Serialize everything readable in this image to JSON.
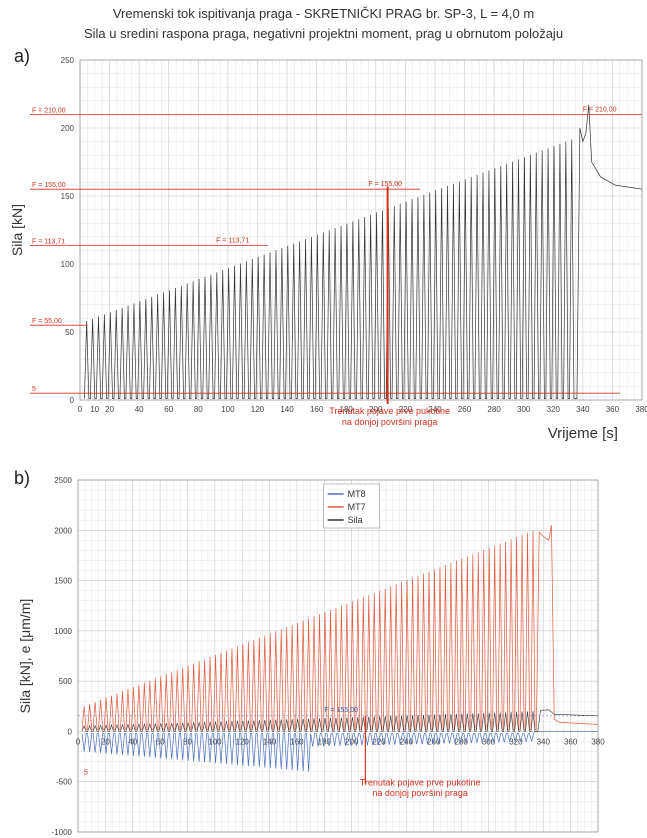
{
  "header": {
    "title": "Vremenski tok ispitivanja praga - SKRETNIČKI PRAG br. SP-3, L = 4,0 m",
    "subtitle": "Sila u sredini raspona praga, negativni projektni moment, prag u obrnutom položaju"
  },
  "colors": {
    "force": "#333333",
    "mt7": "#e05a3c",
    "mt8": "#4a72c0",
    "annotation": "#d3321f",
    "grid": "#bdbdbd"
  },
  "chart_data": [
    {
      "panel_label": "a)",
      "type": "line",
      "xlabel": "Vrijeme [s]",
      "ylabel": "Sila [kN]",
      "xlim": [
        0,
        380
      ],
      "ylim": [
        0,
        250
      ],
      "x_ticks": [
        "0",
        "10",
        "20",
        "40",
        "60",
        "80",
        "100",
        "120",
        "140",
        "160",
        "180",
        "200",
        "220",
        "240",
        "260",
        "280",
        "300",
        "320",
        "340",
        "360",
        "380"
      ],
      "y_ticks": [
        "0",
        "50",
        "100",
        "150",
        "200",
        "250"
      ],
      "grid": true,
      "series": [
        {
          "role": "force",
          "cycles": {
            "t_start": 3,
            "t_end": 332,
            "peak_start": 58,
            "peak_end": 192
          },
          "final_peak": {
            "t": 344,
            "value": 217
          },
          "tail": {
            "t_end": 380,
            "value": 155
          }
        }
      ],
      "reference_lines": [
        {
          "value": 210,
          "left_label": "F = 210,00",
          "right_label": "F = 210,00",
          "label_t": 340
        },
        {
          "value": 155,
          "left_label": "F = 155,00",
          "mid_label": "F = 155,00",
          "label_t": 195
        },
        {
          "value": 113.71,
          "left_label": "F = 113,71",
          "mid_label": "F = 113,71",
          "label_t": 92
        },
        {
          "value": 55,
          "left_label": "F = 55,00"
        },
        {
          "value": 5,
          "left_label": "5"
        }
      ],
      "crack_marker": {
        "t": 208,
        "label_line1": "Trenutak pojave prve pukotine",
        "label_line2": "na donjoj površini praga"
      }
    },
    {
      "panel_label": "b)",
      "type": "line",
      "xlabel": "",
      "ylabel": "Sila [kN], e [μm/m]",
      "xlim": [
        0,
        380
      ],
      "ylim": [
        -1000,
        2500
      ],
      "x_ticks": [
        "0",
        "20",
        "40",
        "60",
        "80",
        "100",
        "120",
        "140",
        "160",
        "180",
        "200",
        "220",
        "240",
        "260",
        "280",
        "300",
        "320",
        "340",
        "360",
        "380"
      ],
      "y_ticks": [
        "-1000",
        "-500",
        "0",
        "500",
        "1000",
        "1500",
        "2000",
        "2500"
      ],
      "grid": true,
      "legend": {
        "placement": "top-center",
        "entries": [
          "MT8",
          "MT7",
          "Sila"
        ]
      },
      "series": [
        {
          "name": "MT8",
          "role": "mt8",
          "trough_start": -200,
          "trough_end": -400
        },
        {
          "name": "MT7",
          "role": "mt7",
          "peak_start": 250,
          "peak_end": 2000,
          "final_peak": 2050,
          "tail_value": 70
        },
        {
          "name": "Sila",
          "role": "force",
          "peak_start": 55,
          "peak_end": 200,
          "tail_value": 155
        }
      ],
      "reference_lines": [
        {
          "value": 155,
          "mid_label": "F = 155,00",
          "label_t": 180
        }
      ],
      "left_note": "5",
      "crack_marker": {
        "t": 210,
        "label_line1": "Trenutak pojave prve pukotine",
        "label_line2": "na donjoj površini praga"
      }
    }
  ]
}
